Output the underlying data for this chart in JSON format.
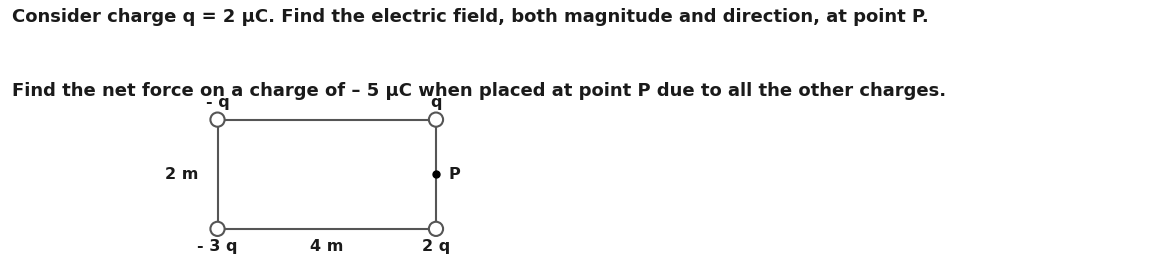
{
  "title_line1": "Consider charge q = 2 μC. Find the electric field, both magnitude and direction, at point P.",
  "title_line2": "Find the net force on a charge of – 5 μC when placed at point P due to all the other charges.",
  "text_color": "#1a1a1a",
  "rect_color": "#555555",
  "circle_edgecolor": "#555555",
  "circle_facecolor": "white",
  "point_P_color": "black",
  "labels": {
    "top_left": "- q",
    "top_right": "q",
    "bottom_left": "- 3 q",
    "bottom_right": "2 q",
    "left_side": "2 m",
    "bottom_mid": "4 m",
    "point_label": "P"
  },
  "background_color": "#ffffff",
  "font_size_title": 13.0,
  "font_size_labels": 11.5,
  "line_width": 1.5,
  "fig_width": 11.65,
  "fig_height": 2.64,
  "dpi": 100
}
